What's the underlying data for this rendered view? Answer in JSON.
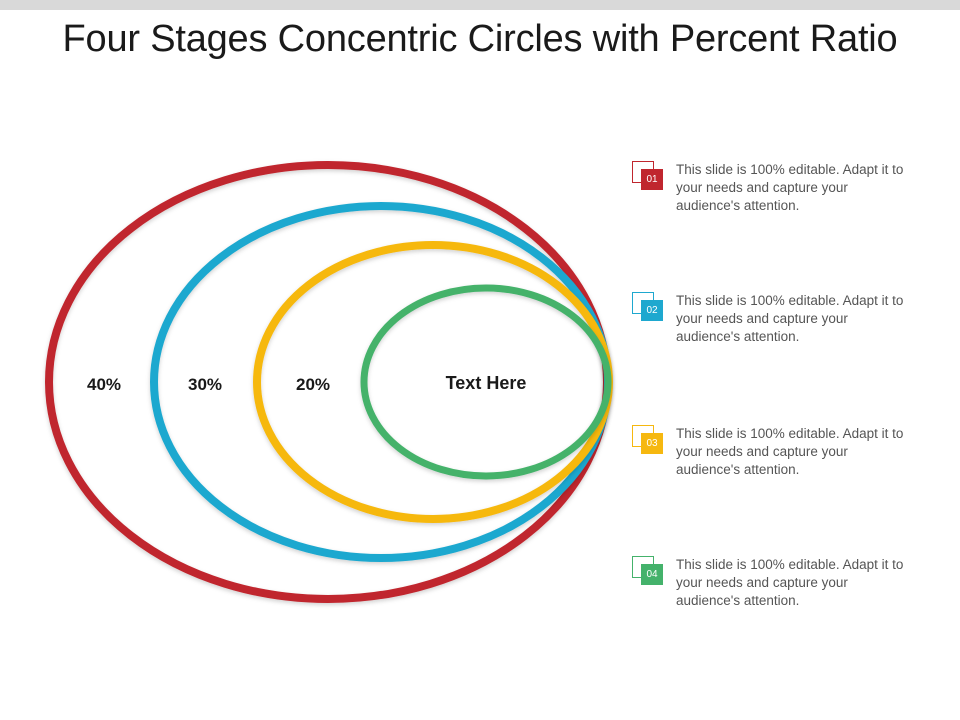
{
  "slide": {
    "title": "Four Stages Concentric Circles with Percent Ratio"
  },
  "diagram": {
    "center_label": "Text Here",
    "rings": [
      {
        "label": "40%",
        "color": "#c0262e"
      },
      {
        "label": "30%",
        "color": "#1ea8cf"
      },
      {
        "label": "20%",
        "color": "#f6b810"
      },
      {
        "label": "Text Here",
        "color": "#44b26b"
      }
    ]
  },
  "legend": {
    "items": [
      {
        "number": "01",
        "text": "This slide is 100% editable. Adapt it to your needs and capture your audience's attention.",
        "color": "#c0262e"
      },
      {
        "number": "02",
        "text": "This slide is 100% editable. Adapt it to your needs and capture your audience's attention.",
        "color": "#1ea8cf"
      },
      {
        "number": "03",
        "text": "This slide is 100% editable. Adapt it to your needs and capture your audience's attention.",
        "color": "#f6b810"
      },
      {
        "number": "04",
        "text": "This slide is 100% editable. Adapt it to your needs and capture your audience's attention.",
        "color": "#44b26b"
      }
    ]
  }
}
